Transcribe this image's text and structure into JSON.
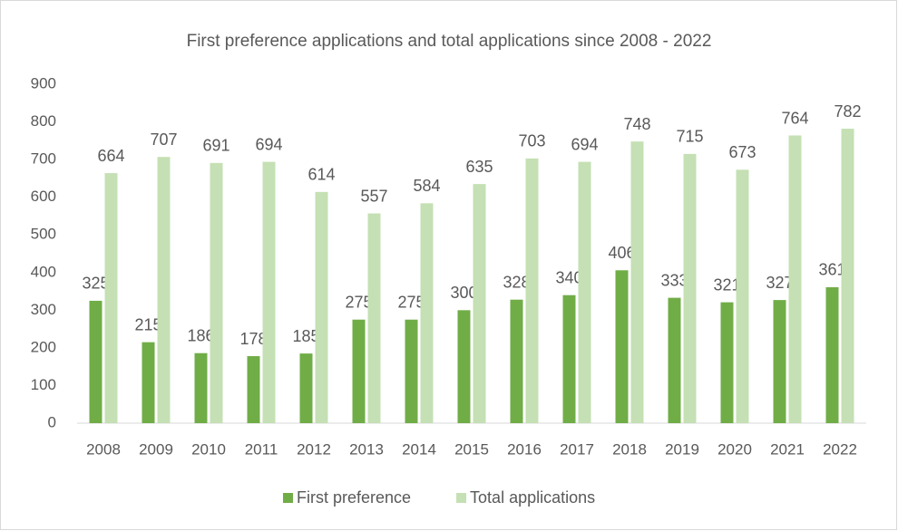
{
  "chart_data": {
    "type": "bar",
    "title": "First preference applications and total applications since 2008 - 2022",
    "categories": [
      "2008",
      "2009",
      "2010",
      "2011",
      "2012",
      "2013",
      "2014",
      "2015",
      "2016",
      "2017",
      "2018",
      "2019",
      "2020",
      "2021",
      "2022"
    ],
    "series": [
      {
        "name": "First preference",
        "color": "#70ad47",
        "values": [
          325,
          215,
          186,
          178,
          185,
          275,
          275,
          300,
          328,
          340,
          406,
          333,
          321,
          327,
          361
        ]
      },
      {
        "name": "Total applications",
        "color": "#c5e0b4",
        "values": [
          664,
          707,
          691,
          694,
          614,
          557,
          584,
          635,
          703,
          694,
          748,
          715,
          673,
          764,
          782
        ]
      }
    ],
    "ylim": [
      0,
      900
    ],
    "yticks": [
      0,
      100,
      200,
      300,
      400,
      500,
      600,
      700,
      800,
      900
    ],
    "grid": false,
    "legend": "bottom"
  }
}
